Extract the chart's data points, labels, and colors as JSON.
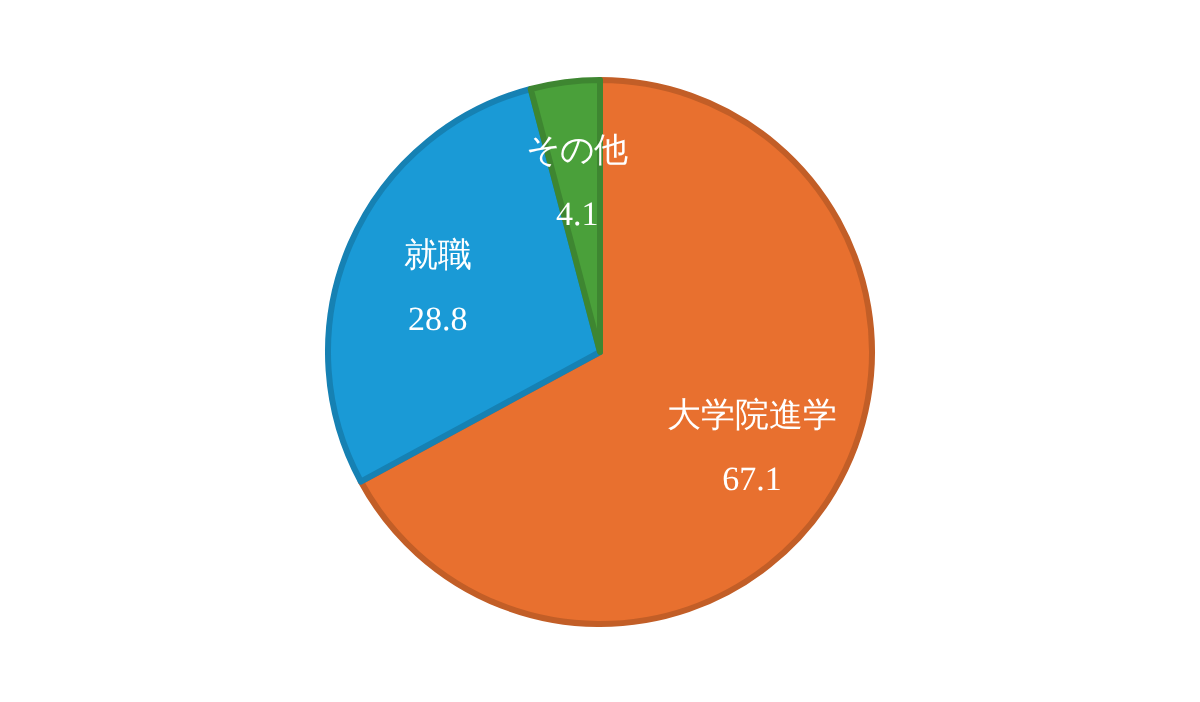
{
  "chart_data": {
    "type": "pie",
    "categories": [
      "大学院進学",
      "就職",
      "その他"
    ],
    "values": [
      67.1,
      28.8,
      4.1
    ],
    "colors": [
      "#e8702f",
      "#1a9ad6",
      "#4aa03a"
    ],
    "data_labels": true
  }
}
